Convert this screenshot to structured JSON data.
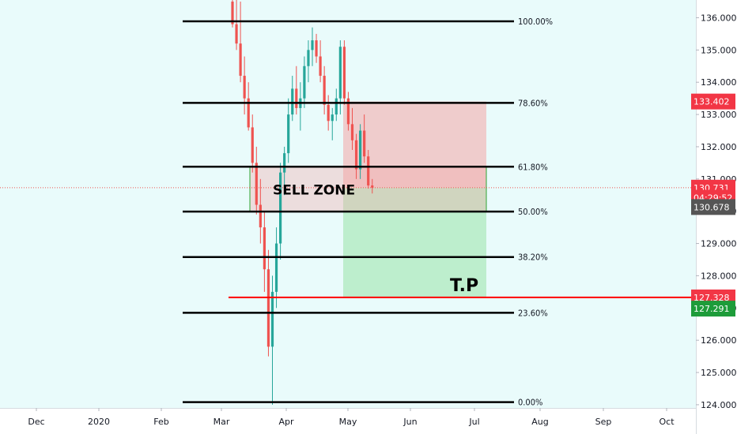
{
  "chart_data": {
    "type": "candlestick",
    "colors": {
      "background": "#e9fbfb",
      "up_candle": "#26a69a",
      "down_candle": "#ef5350",
      "sell_box": "#f4a6a6",
      "tp_box": "#a6e6b4",
      "zone_border": "#4caf50",
      "tp_line": "#ff0000",
      "badge_red": "#f23645",
      "badge_dark": "#555555",
      "badge_green": "#1e9c3a"
    },
    "y_range": [
      123.9,
      136.55
    ],
    "y_ticks": [
      "136.000",
      "135.000",
      "134.000",
      "133.000",
      "132.000",
      "131.000",
      "130.000",
      "129.000",
      "128.000",
      "127.000",
      "126.000",
      "125.000",
      "124.000"
    ],
    "x_ticks": [
      "Dec",
      "2020",
      "Feb",
      "Mar",
      "Apr",
      "May",
      "Jun",
      "Jul",
      "Aug",
      "Sep",
      "Oct"
    ],
    "fib_levels": [
      {
        "label": "100.00%",
        "price": 135.89
      },
      {
        "label": "78.60%",
        "price": 133.36
      },
      {
        "label": "61.80%",
        "price": 131.38
      },
      {
        "label": "50.00%",
        "price": 129.99
      },
      {
        "label": "38.20%",
        "price": 128.58
      },
      {
        "label": "23.60%",
        "price": 126.85
      },
      {
        "label": "0.00%",
        "price": 124.08
      }
    ],
    "sell_zone": {
      "label": "SELL ZONE",
      "top": 131.38,
      "bottom": 129.99
    },
    "trade": {
      "entry": 130.73,
      "stop": 133.402,
      "target": 127.328
    },
    "tp_label": "T.P",
    "price_badges": [
      {
        "text": "133.402",
        "price": 133.402,
        "kind": "red"
      },
      {
        "text": "130.731",
        "price": 130.731,
        "kind": "red"
      },
      {
        "text": "04:29:52",
        "price": 130.42,
        "kind": "red"
      },
      {
        "text": "130.678",
        "price": 130.13,
        "kind": "dark"
      },
      {
        "text": "127.328",
        "price": 127.328,
        "kind": "red"
      },
      {
        "text": "127.291",
        "price": 126.98,
        "kind": "green"
      }
    ],
    "candles": [
      [
        136.5,
        136.6,
        135.7,
        135.8
      ],
      [
        135.8,
        136.7,
        135.0,
        135.2
      ],
      [
        135.2,
        136.5,
        134.0,
        134.2
      ],
      [
        134.2,
        134.8,
        133.0,
        133.5
      ],
      [
        133.5,
        134.0,
        132.5,
        132.6
      ],
      [
        132.6,
        133.0,
        131.2,
        131.5
      ],
      [
        131.5,
        132.0,
        129.9,
        130.2
      ],
      [
        130.2,
        131.0,
        129.0,
        129.5
      ],
      [
        129.5,
        130.0,
        127.5,
        128.2
      ],
      [
        128.2,
        128.8,
        125.5,
        125.8
      ],
      [
        125.8,
        128.0,
        124.0,
        127.5
      ],
      [
        127.5,
        129.5,
        127.0,
        129.0
      ],
      [
        129.0,
        131.5,
        128.5,
        131.2
      ],
      [
        131.2,
        132.0,
        130.5,
        131.8
      ],
      [
        131.8,
        133.5,
        131.5,
        133.0
      ],
      [
        133.0,
        134.2,
        132.8,
        133.8
      ],
      [
        133.8,
        134.5,
        133.0,
        133.2
      ],
      [
        133.2,
        134.0,
        132.5,
        133.5
      ],
      [
        133.5,
        134.8,
        133.2,
        134.5
      ],
      [
        134.5,
        135.3,
        134.0,
        135.0
      ],
      [
        135.0,
        135.7,
        134.5,
        135.3
      ],
      [
        135.3,
        135.5,
        134.6,
        134.8
      ],
      [
        134.8,
        135.3,
        134.0,
        134.2
      ],
      [
        134.2,
        134.5,
        133.0,
        133.3
      ],
      [
        133.3,
        133.6,
        132.5,
        132.8
      ],
      [
        132.8,
        133.2,
        132.2,
        133.0
      ],
      [
        133.0,
        133.8,
        132.8,
        133.5
      ],
      [
        133.5,
        135.3,
        133.0,
        135.1
      ],
      [
        135.1,
        135.3,
        133.3,
        133.5
      ],
      [
        133.5,
        133.7,
        132.5,
        132.7
      ],
      [
        132.7,
        133.2,
        131.9,
        132.2
      ],
      [
        132.2,
        132.4,
        131.0,
        131.3
      ],
      [
        131.3,
        132.7,
        131.0,
        132.5
      ],
      [
        132.5,
        133.0,
        131.5,
        131.7
      ],
      [
        131.7,
        131.9,
        130.7,
        130.8
      ],
      [
        130.8,
        131.0,
        130.55,
        130.73
      ]
    ]
  }
}
